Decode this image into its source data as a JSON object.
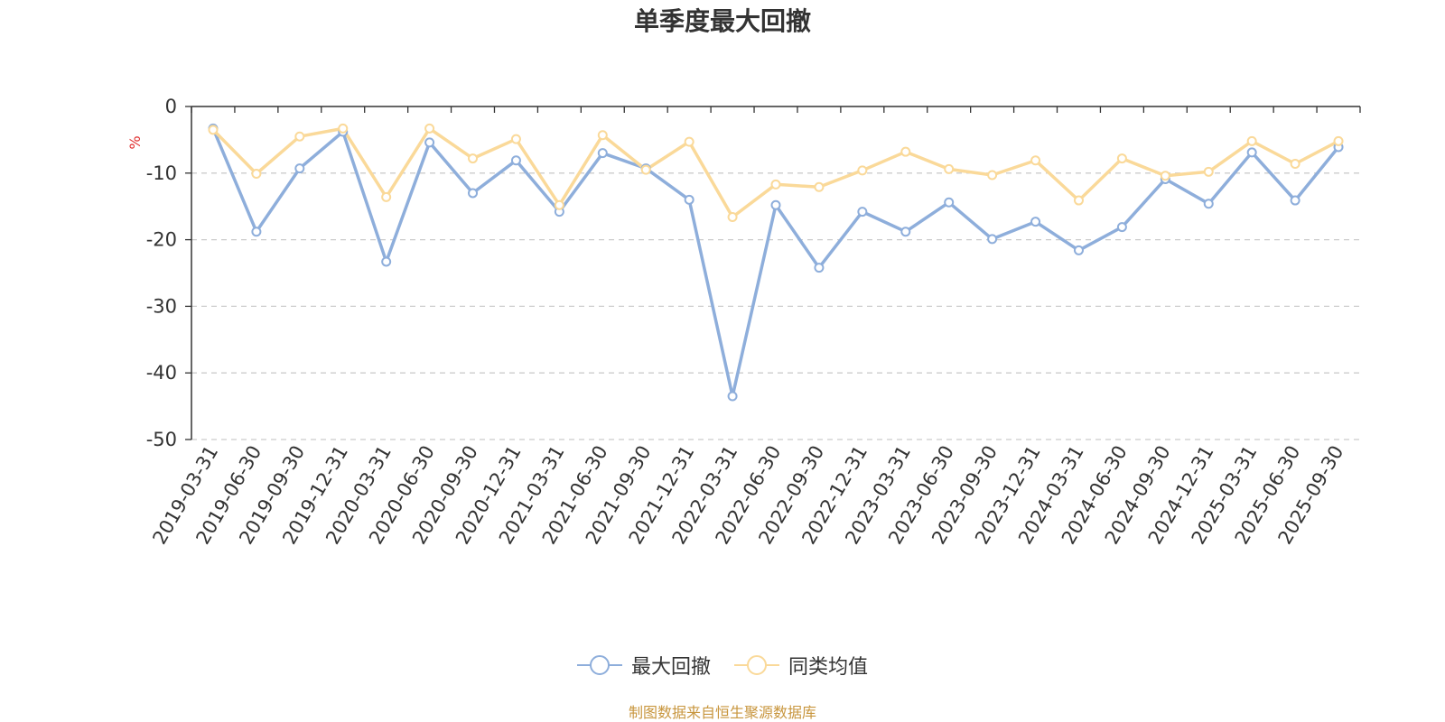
{
  "chart_data": {
    "type": "line",
    "title": "单季度最大回撤",
    "ylabel": "%",
    "ylim": [
      -50,
      0
    ],
    "yticks": [
      0,
      -10,
      -20,
      -30,
      -40,
      -50
    ],
    "grid": true,
    "legend_position": "bottom",
    "categories": [
      "2019-03-31",
      "2019-06-30",
      "2019-09-30",
      "2019-12-31",
      "2020-03-31",
      "2020-06-30",
      "2020-09-30",
      "2020-12-31",
      "2021-03-31",
      "2021-06-30",
      "2021-09-30",
      "2021-12-31",
      "2022-03-31",
      "2022-06-30",
      "2022-09-30",
      "2022-12-31",
      "2023-03-31",
      "2023-06-30",
      "2023-09-30",
      "2023-12-31",
      "2024-03-31",
      "2024-06-30",
      "2024-09-30",
      "2024-12-31",
      "2025-03-31",
      "2025-06-30",
      "2025-09-30"
    ],
    "series": [
      {
        "name": "最大回撤",
        "color": "#8eaedb",
        "values": [
          -3.3,
          -18.8,
          -9.3,
          -3.8,
          -23.3,
          -5.4,
          -13.0,
          -8.1,
          -15.8,
          -7.0,
          -9.3,
          -14.0,
          -43.5,
          -14.8,
          -24.2,
          -15.8,
          -18.8,
          -14.4,
          -19.9,
          -17.3,
          -21.6,
          -18.1,
          -10.9,
          -14.6,
          -6.9,
          -14.1,
          -6.1
        ]
      },
      {
        "name": "同类均值",
        "color": "#fad999",
        "values": [
          -3.5,
          -10.1,
          -4.5,
          -3.3,
          -13.6,
          -3.3,
          -7.8,
          -4.9,
          -14.8,
          -4.3,
          -9.5,
          -5.3,
          -16.6,
          -11.7,
          -12.1,
          -9.6,
          -6.8,
          -9.4,
          -10.3,
          -8.1,
          -14.1,
          -7.8,
          -10.4,
          -9.8,
          -5.2,
          -8.6,
          -5.2
        ]
      }
    ]
  },
  "source": "制图数据来自恒生聚源数据库"
}
